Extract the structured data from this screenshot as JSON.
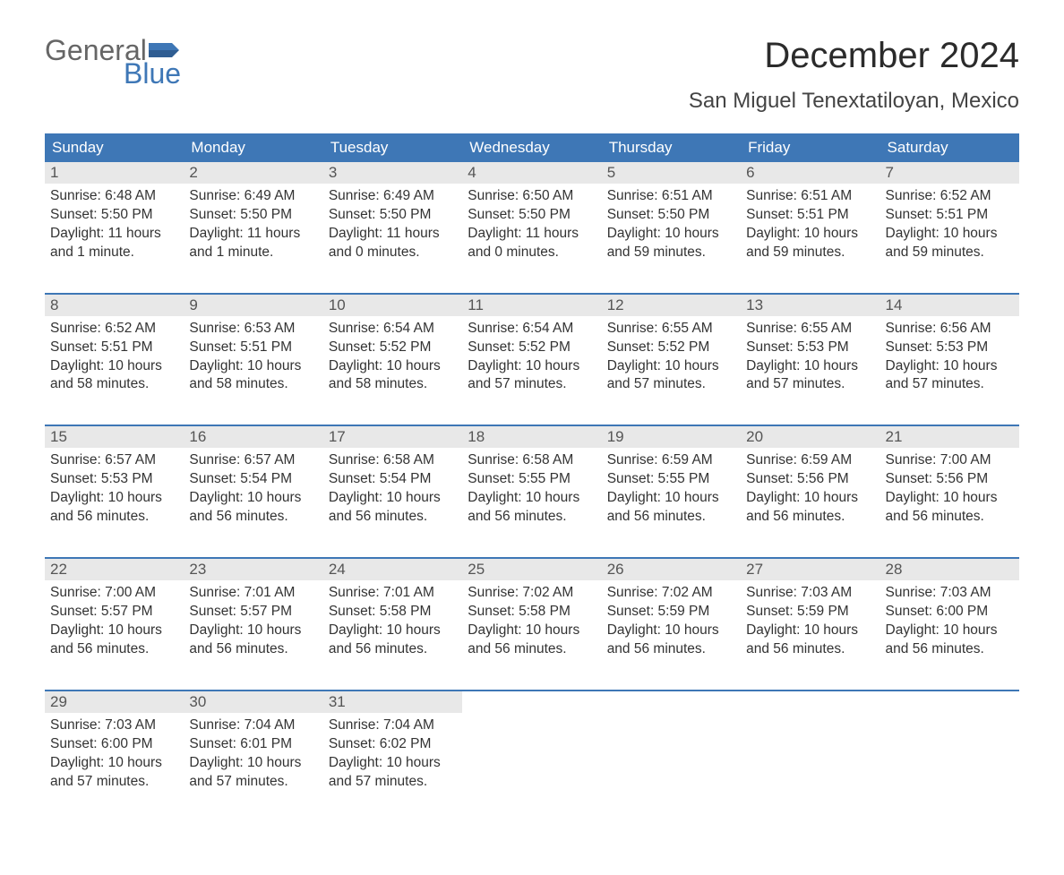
{
  "logo": {
    "word1": "General",
    "word2": "Blue"
  },
  "title": "December 2024",
  "location": "San Miguel Tenextatiloyan, Mexico",
  "colors": {
    "header_blue": "#3e77b6",
    "daynum_bg": "#e8e8e8",
    "text": "#333333",
    "title": "#2b2b2b",
    "logo_gray": "#666666",
    "logo_blue": "#3e77b6",
    "background": "#ffffff"
  },
  "typography": {
    "title_fontsize": 40,
    "location_fontsize": 24,
    "header_fontsize": 17,
    "daynum_fontsize": 17,
    "cell_fontsize": 15.5,
    "logo_fontsize": 32,
    "font_family": "Arial"
  },
  "day_headers": [
    "Sunday",
    "Monday",
    "Tuesday",
    "Wednesday",
    "Thursday",
    "Friday",
    "Saturday"
  ],
  "weeks": [
    [
      {
        "n": "1",
        "sunrise": "Sunrise: 6:48 AM",
        "sunset": "Sunset: 5:50 PM",
        "day1": "Daylight: 11 hours",
        "day2": "and 1 minute."
      },
      {
        "n": "2",
        "sunrise": "Sunrise: 6:49 AM",
        "sunset": "Sunset: 5:50 PM",
        "day1": "Daylight: 11 hours",
        "day2": "and 1 minute."
      },
      {
        "n": "3",
        "sunrise": "Sunrise: 6:49 AM",
        "sunset": "Sunset: 5:50 PM",
        "day1": "Daylight: 11 hours",
        "day2": "and 0 minutes."
      },
      {
        "n": "4",
        "sunrise": "Sunrise: 6:50 AM",
        "sunset": "Sunset: 5:50 PM",
        "day1": "Daylight: 11 hours",
        "day2": "and 0 minutes."
      },
      {
        "n": "5",
        "sunrise": "Sunrise: 6:51 AM",
        "sunset": "Sunset: 5:50 PM",
        "day1": "Daylight: 10 hours",
        "day2": "and 59 minutes."
      },
      {
        "n": "6",
        "sunrise": "Sunrise: 6:51 AM",
        "sunset": "Sunset: 5:51 PM",
        "day1": "Daylight: 10 hours",
        "day2": "and 59 minutes."
      },
      {
        "n": "7",
        "sunrise": "Sunrise: 6:52 AM",
        "sunset": "Sunset: 5:51 PM",
        "day1": "Daylight: 10 hours",
        "day2": "and 59 minutes."
      }
    ],
    [
      {
        "n": "8",
        "sunrise": "Sunrise: 6:52 AM",
        "sunset": "Sunset: 5:51 PM",
        "day1": "Daylight: 10 hours",
        "day2": "and 58 minutes."
      },
      {
        "n": "9",
        "sunrise": "Sunrise: 6:53 AM",
        "sunset": "Sunset: 5:51 PM",
        "day1": "Daylight: 10 hours",
        "day2": "and 58 minutes."
      },
      {
        "n": "10",
        "sunrise": "Sunrise: 6:54 AM",
        "sunset": "Sunset: 5:52 PM",
        "day1": "Daylight: 10 hours",
        "day2": "and 58 minutes."
      },
      {
        "n": "11",
        "sunrise": "Sunrise: 6:54 AM",
        "sunset": "Sunset: 5:52 PM",
        "day1": "Daylight: 10 hours",
        "day2": "and 57 minutes."
      },
      {
        "n": "12",
        "sunrise": "Sunrise: 6:55 AM",
        "sunset": "Sunset: 5:52 PM",
        "day1": "Daylight: 10 hours",
        "day2": "and 57 minutes."
      },
      {
        "n": "13",
        "sunrise": "Sunrise: 6:55 AM",
        "sunset": "Sunset: 5:53 PM",
        "day1": "Daylight: 10 hours",
        "day2": "and 57 minutes."
      },
      {
        "n": "14",
        "sunrise": "Sunrise: 6:56 AM",
        "sunset": "Sunset: 5:53 PM",
        "day1": "Daylight: 10 hours",
        "day2": "and 57 minutes."
      }
    ],
    [
      {
        "n": "15",
        "sunrise": "Sunrise: 6:57 AM",
        "sunset": "Sunset: 5:53 PM",
        "day1": "Daylight: 10 hours",
        "day2": "and 56 minutes."
      },
      {
        "n": "16",
        "sunrise": "Sunrise: 6:57 AM",
        "sunset": "Sunset: 5:54 PM",
        "day1": "Daylight: 10 hours",
        "day2": "and 56 minutes."
      },
      {
        "n": "17",
        "sunrise": "Sunrise: 6:58 AM",
        "sunset": "Sunset: 5:54 PM",
        "day1": "Daylight: 10 hours",
        "day2": "and 56 minutes."
      },
      {
        "n": "18",
        "sunrise": "Sunrise: 6:58 AM",
        "sunset": "Sunset: 5:55 PM",
        "day1": "Daylight: 10 hours",
        "day2": "and 56 minutes."
      },
      {
        "n": "19",
        "sunrise": "Sunrise: 6:59 AM",
        "sunset": "Sunset: 5:55 PM",
        "day1": "Daylight: 10 hours",
        "day2": "and 56 minutes."
      },
      {
        "n": "20",
        "sunrise": "Sunrise: 6:59 AM",
        "sunset": "Sunset: 5:56 PM",
        "day1": "Daylight: 10 hours",
        "day2": "and 56 minutes."
      },
      {
        "n": "21",
        "sunrise": "Sunrise: 7:00 AM",
        "sunset": "Sunset: 5:56 PM",
        "day1": "Daylight: 10 hours",
        "day2": "and 56 minutes."
      }
    ],
    [
      {
        "n": "22",
        "sunrise": "Sunrise: 7:00 AM",
        "sunset": "Sunset: 5:57 PM",
        "day1": "Daylight: 10 hours",
        "day2": "and 56 minutes."
      },
      {
        "n": "23",
        "sunrise": "Sunrise: 7:01 AM",
        "sunset": "Sunset: 5:57 PM",
        "day1": "Daylight: 10 hours",
        "day2": "and 56 minutes."
      },
      {
        "n": "24",
        "sunrise": "Sunrise: 7:01 AM",
        "sunset": "Sunset: 5:58 PM",
        "day1": "Daylight: 10 hours",
        "day2": "and 56 minutes."
      },
      {
        "n": "25",
        "sunrise": "Sunrise: 7:02 AM",
        "sunset": "Sunset: 5:58 PM",
        "day1": "Daylight: 10 hours",
        "day2": "and 56 minutes."
      },
      {
        "n": "26",
        "sunrise": "Sunrise: 7:02 AM",
        "sunset": "Sunset: 5:59 PM",
        "day1": "Daylight: 10 hours",
        "day2": "and 56 minutes."
      },
      {
        "n": "27",
        "sunrise": "Sunrise: 7:03 AM",
        "sunset": "Sunset: 5:59 PM",
        "day1": "Daylight: 10 hours",
        "day2": "and 56 minutes."
      },
      {
        "n": "28",
        "sunrise": "Sunrise: 7:03 AM",
        "sunset": "Sunset: 6:00 PM",
        "day1": "Daylight: 10 hours",
        "day2": "and 56 minutes."
      }
    ],
    [
      {
        "n": "29",
        "sunrise": "Sunrise: 7:03 AM",
        "sunset": "Sunset: 6:00 PM",
        "day1": "Daylight: 10 hours",
        "day2": "and 57 minutes."
      },
      {
        "n": "30",
        "sunrise": "Sunrise: 7:04 AM",
        "sunset": "Sunset: 6:01 PM",
        "day1": "Daylight: 10 hours",
        "day2": "and 57 minutes."
      },
      {
        "n": "31",
        "sunrise": "Sunrise: 7:04 AM",
        "sunset": "Sunset: 6:02 PM",
        "day1": "Daylight: 10 hours",
        "day2": "and 57 minutes."
      },
      null,
      null,
      null,
      null
    ]
  ]
}
